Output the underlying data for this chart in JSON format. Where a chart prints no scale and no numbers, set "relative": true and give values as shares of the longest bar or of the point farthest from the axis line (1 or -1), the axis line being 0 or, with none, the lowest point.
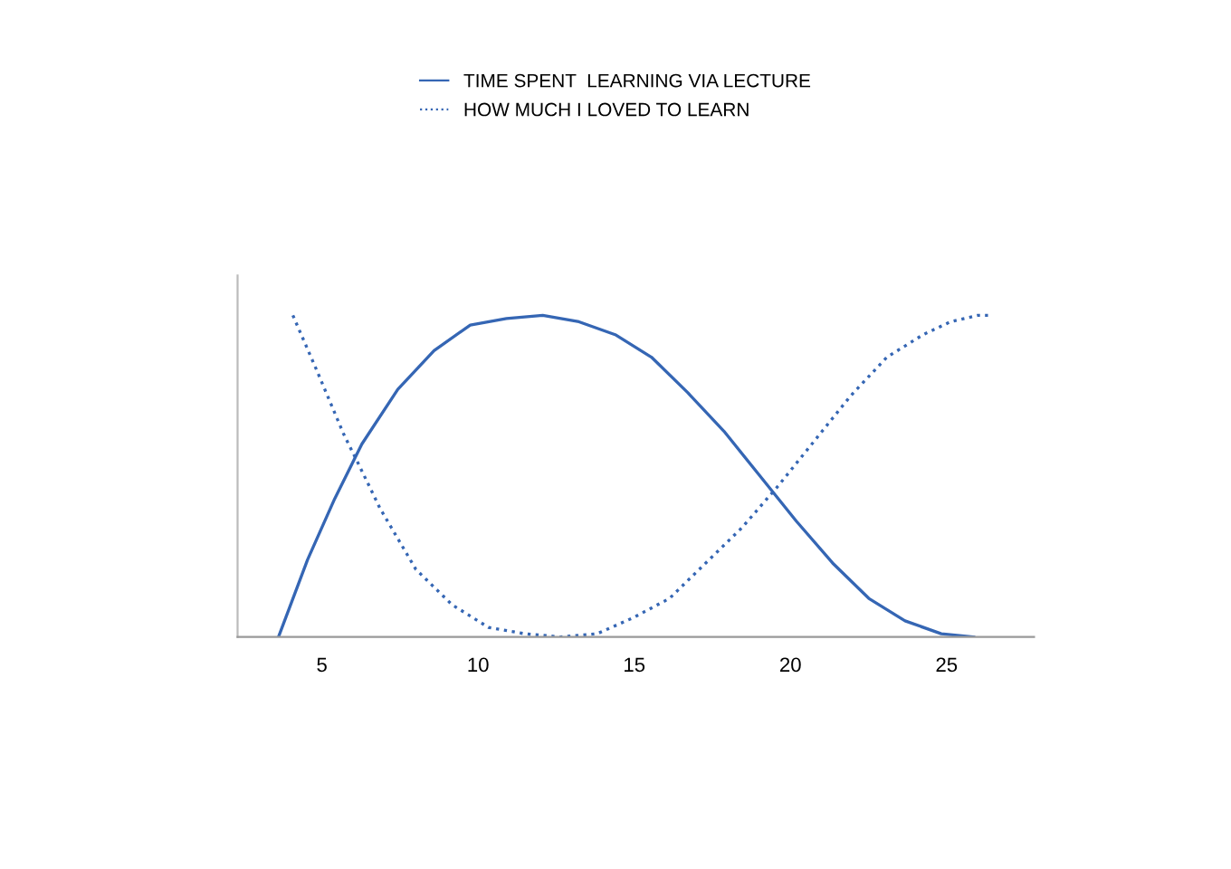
{
  "chart_data": {
    "type": "line",
    "relative": true,
    "legend": "top",
    "grid": false,
    "tick_labels": "x",
    "xlim": [
      2.3,
      27.8
    ],
    "xticks": [
      5,
      10,
      15,
      20,
      25
    ],
    "series": [
      {
        "name": "TIME SPENT  LEARNING VIA LECTURE",
        "color": "#3566b4",
        "line_style": "solid",
        "x": [
          3.61,
          4.54,
          5.41,
          6.28,
          7.43,
          8.59,
          9.75,
          10.91,
          12.07,
          13.23,
          14.39,
          15.55,
          16.71,
          17.87,
          19.03,
          20.19,
          21.35,
          22.51,
          23.67,
          24.83,
          25.87
        ],
        "values": [
          0,
          0.24,
          0.43,
          0.6,
          0.77,
          0.89,
          0.97,
          0.99,
          1,
          0.98,
          0.94,
          0.87,
          0.76,
          0.64,
          0.5,
          0.36,
          0.23,
          0.12,
          0.05,
          0.01,
          0
        ]
      },
      {
        "name": "HOW MUCH I LOVED TO LEARN",
        "color": "#3566b4",
        "line_style": "dotted",
        "x": [
          4.07,
          4.83,
          5.7,
          6.16,
          6.86,
          8.01,
          9.17,
          10.33,
          11.49,
          12.65,
          13.81,
          14.97,
          16.13,
          17.29,
          18.45,
          19.61,
          20.77,
          21.93,
          23.09,
          24.25,
          25.12,
          25.99,
          26.45
        ],
        "values": [
          1,
          0.83,
          0.63,
          0.54,
          0.4,
          0.21,
          0.1,
          0.03,
          0.01,
          0,
          0.01,
          0.06,
          0.12,
          0.23,
          0.34,
          0.47,
          0.61,
          0.75,
          0.87,
          0.94,
          0.98,
          1,
          1
        ]
      }
    ]
  }
}
